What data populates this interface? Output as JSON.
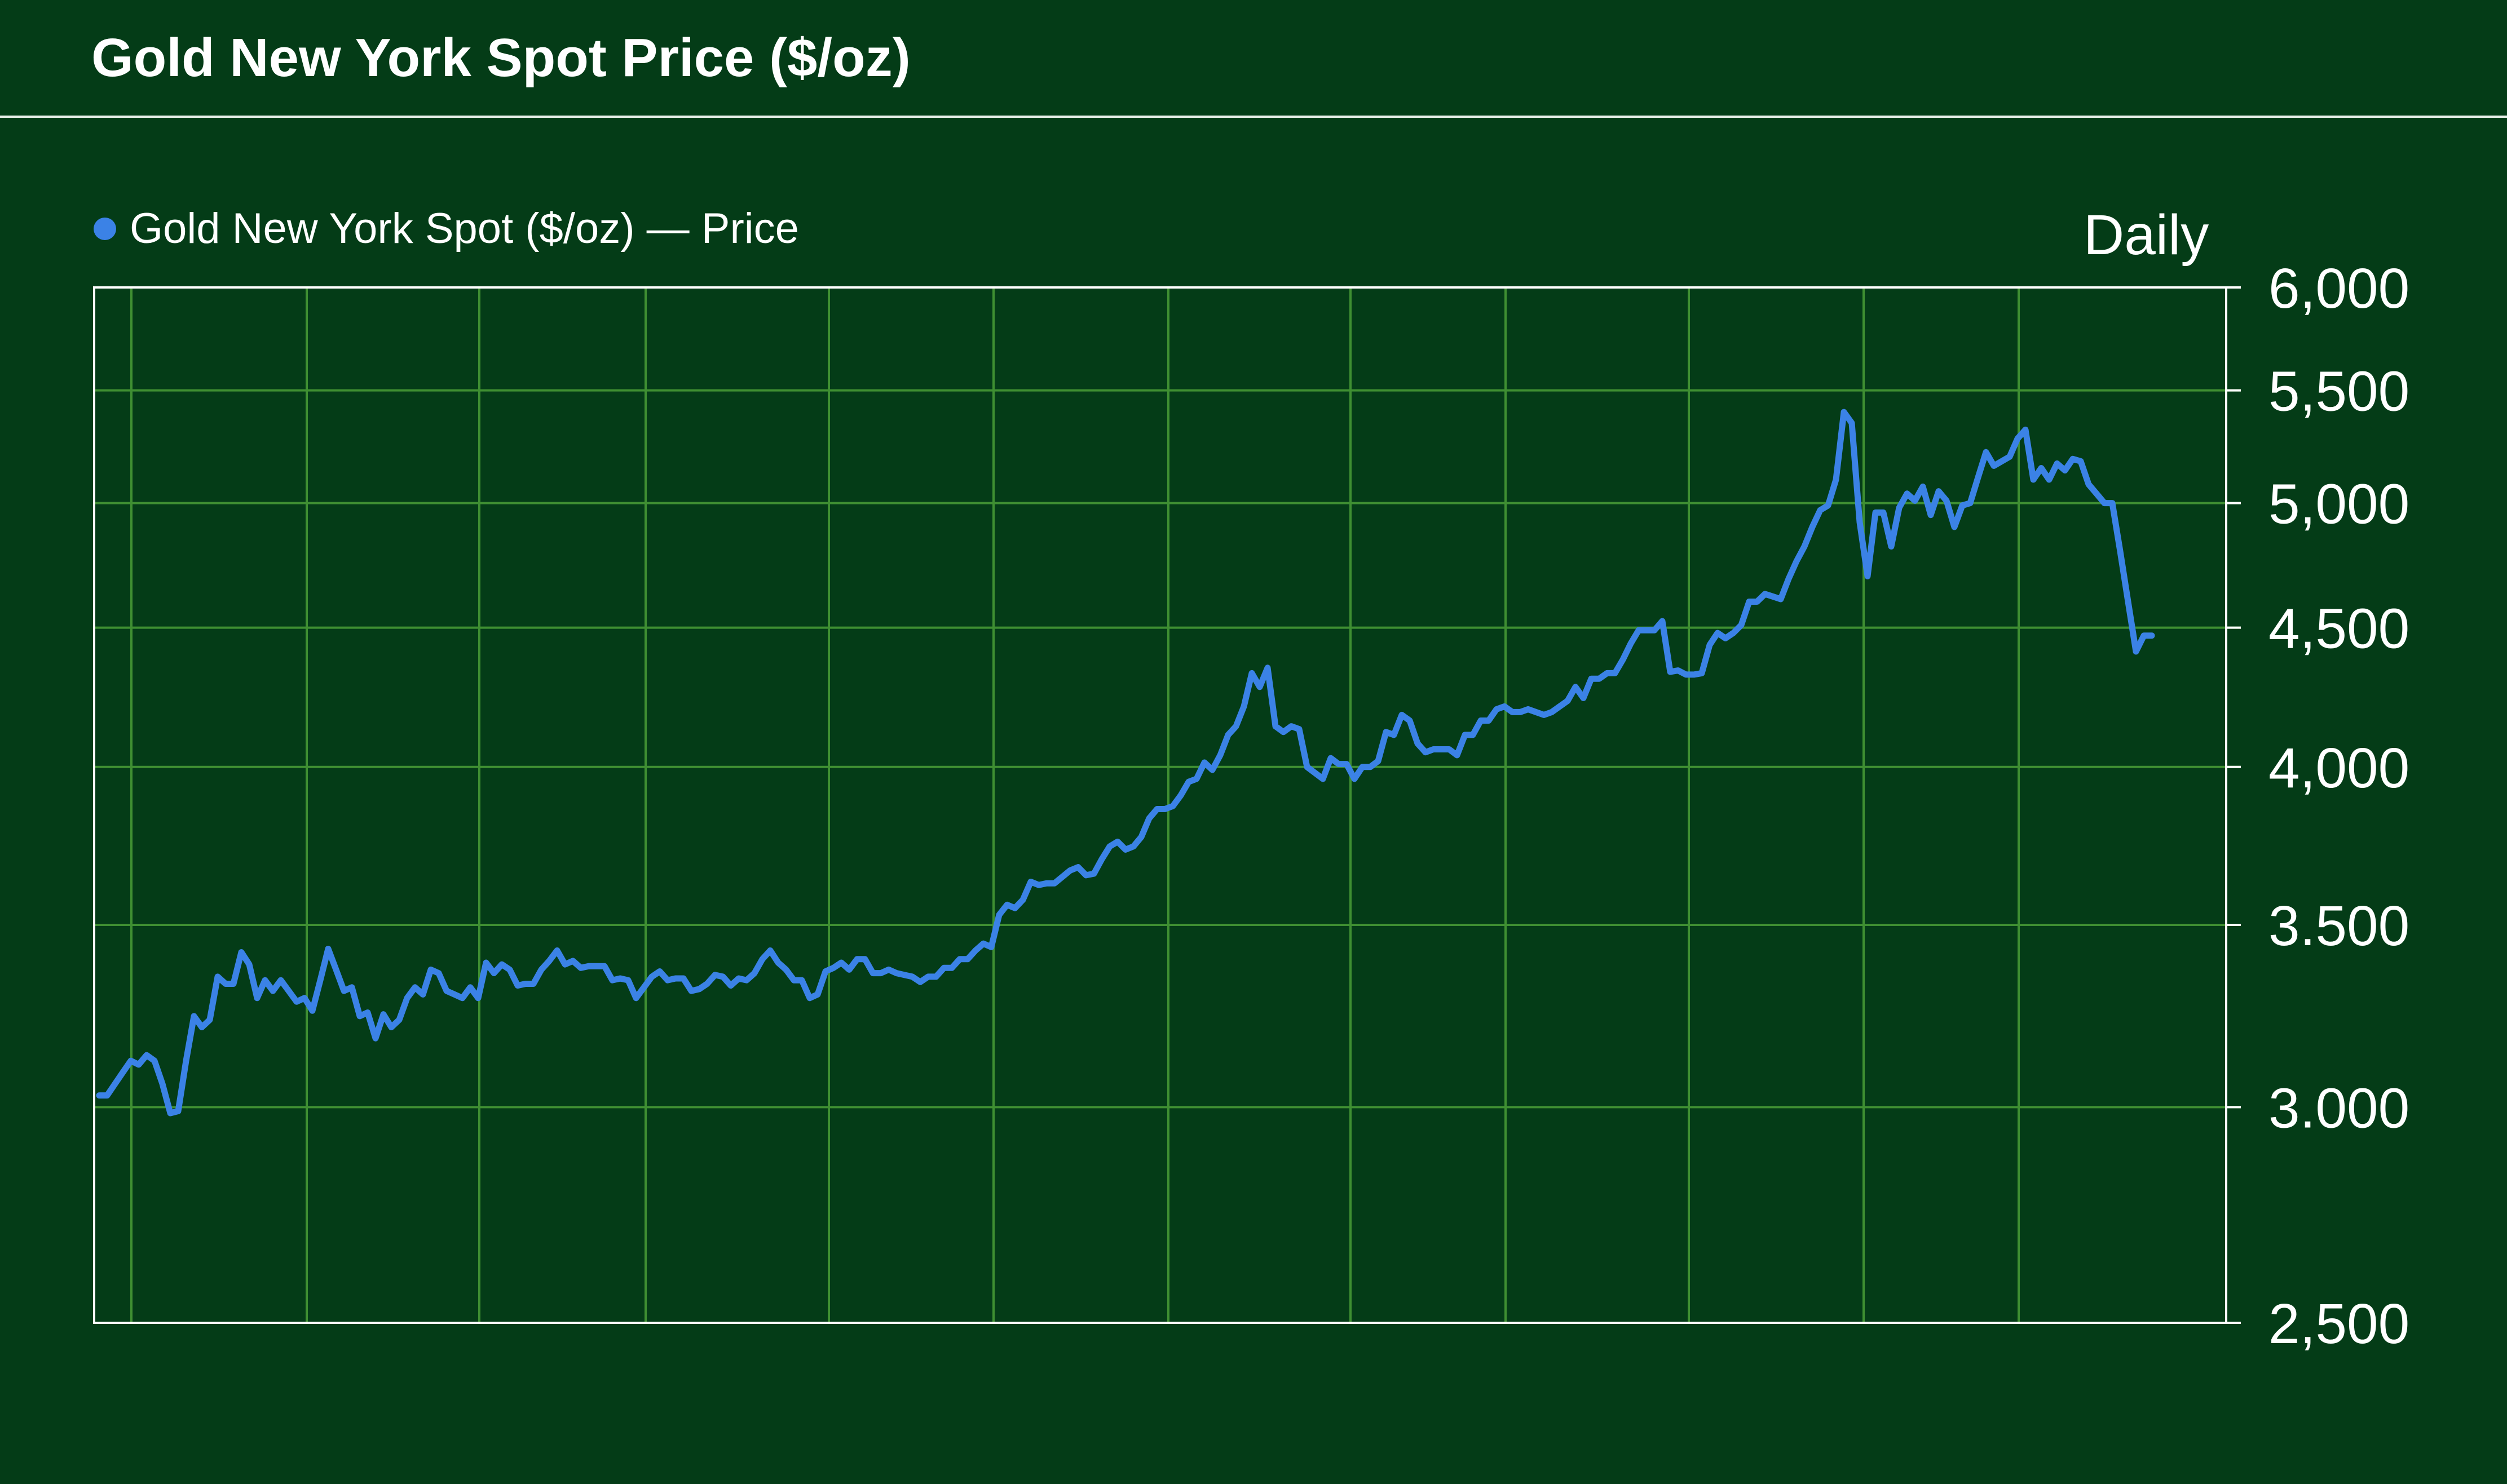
{
  "title": "Gold New York Spot Price ($/oz)",
  "legend": {
    "label": "Gold New York Spot ($/oz) — Price",
    "marker_color": "#3b82e6"
  },
  "frequency_label": "Daily",
  "colors": {
    "background": "#043c17",
    "grid": "#3f8f32",
    "line": "#3b82e6",
    "text": "#ffffff"
  },
  "chart_data": {
    "type": "line",
    "title": "Gold New York Spot Price ($/oz)",
    "series": [
      {
        "name": "Gold New York Spot ($/oz) — Price",
        "values": [
          3030,
          3030,
          3060,
          3090,
          3120,
          3110,
          3135,
          3120,
          3060,
          2985,
          2990,
          3120,
          3240,
          3210,
          3230,
          3350,
          3330,
          3330,
          3420,
          3385,
          3290,
          3340,
          3310,
          3340,
          3310,
          3280,
          3290,
          3255,
          3340,
          3430,
          3370,
          3310,
          3320,
          3240,
          3250,
          3180,
          3245,
          3210,
          3230,
          3290,
          3320,
          3300,
          3370,
          3360,
          3310,
          3300,
          3290,
          3320,
          3290,
          3390,
          3360,
          3385,
          3370,
          3325,
          3330,
          3330,
          3370,
          3395,
          3425,
          3385,
          3395,
          3375,
          3380,
          3380,
          3380,
          3340,
          3345,
          3340,
          3290,
          3320,
          3350,
          3365,
          3340,
          3345,
          3345,
          3310,
          3315,
          3330,
          3355,
          3350,
          3325,
          3345,
          3340,
          3360,
          3400,
          3425,
          3390,
          3370,
          3340,
          3340,
          3290,
          3300,
          3365,
          3375,
          3390,
          3370,
          3400,
          3400,
          3360,
          3360,
          3370,
          3360,
          3355,
          3350,
          3335,
          3350,
          3350,
          3375,
          3375,
          3400,
          3400,
          3425,
          3445,
          3435,
          3530,
          3560,
          3550,
          3575,
          3630,
          3620,
          3625,
          3625,
          3645,
          3665,
          3675,
          3650,
          3655,
          3700,
          3740,
          3755,
          3730,
          3740,
          3770,
          3830,
          3860,
          3860,
          3870,
          3905,
          3950,
          3960,
          4015,
          3990,
          4040,
          4110,
          4140,
          4210,
          4330,
          4280,
          4350,
          4140,
          4120,
          4140,
          4130,
          4000,
          3980,
          3960,
          4030,
          4010,
          4010,
          3960,
          4000,
          4000,
          4020,
          4120,
          4110,
          4180,
          4160,
          4080,
          4050,
          4060,
          4060,
          4060,
          4040,
          4110,
          4110,
          4160,
          4160,
          4200,
          4210,
          4190,
          4190,
          4200,
          4190,
          4180,
          4190,
          4210,
          4230,
          4280,
          4240,
          4310,
          4310,
          4330,
          4330,
          4380,
          4440,
          4490,
          4490,
          4490,
          4525,
          4335,
          4340,
          4325,
          4325,
          4330,
          4435,
          4480,
          4460,
          4480,
          4510,
          4600,
          4600,
          4630,
          4620,
          4610,
          4690,
          4760,
          4820,
          4900,
          4970,
          4990,
          5100,
          5400,
          5350,
          4920,
          4700,
          4960,
          4960,
          4820,
          4980,
          5040,
          5010,
          5070,
          4950,
          5050,
          5010,
          4900,
          4990,
          5000,
          5110,
          5220,
          5160,
          5180,
          5200,
          5280,
          5320,
          5100,
          5150,
          5100,
          5170,
          5140,
          5190,
          5180,
          5080,
          5040,
          5000,
          5000,
          4800,
          4600,
          4410,
          4470,
          4470
        ]
      }
    ],
    "y_axis": {
      "scale": "log",
      "ylim": [
        2500,
        6000
      ],
      "ticks": [
        "6,000",
        "5,500",
        "5,000",
        "4,500",
        "4,000",
        "3.500",
        "3.000",
        "2,500"
      ],
      "tick_values": [
        6000,
        5500,
        5000,
        4500,
        4000,
        3500,
        3000,
        2500
      ],
      "position": "right"
    },
    "x_axis": {
      "tick_labels": []
    },
    "grid": true,
    "legend_placement": "top-left"
  }
}
